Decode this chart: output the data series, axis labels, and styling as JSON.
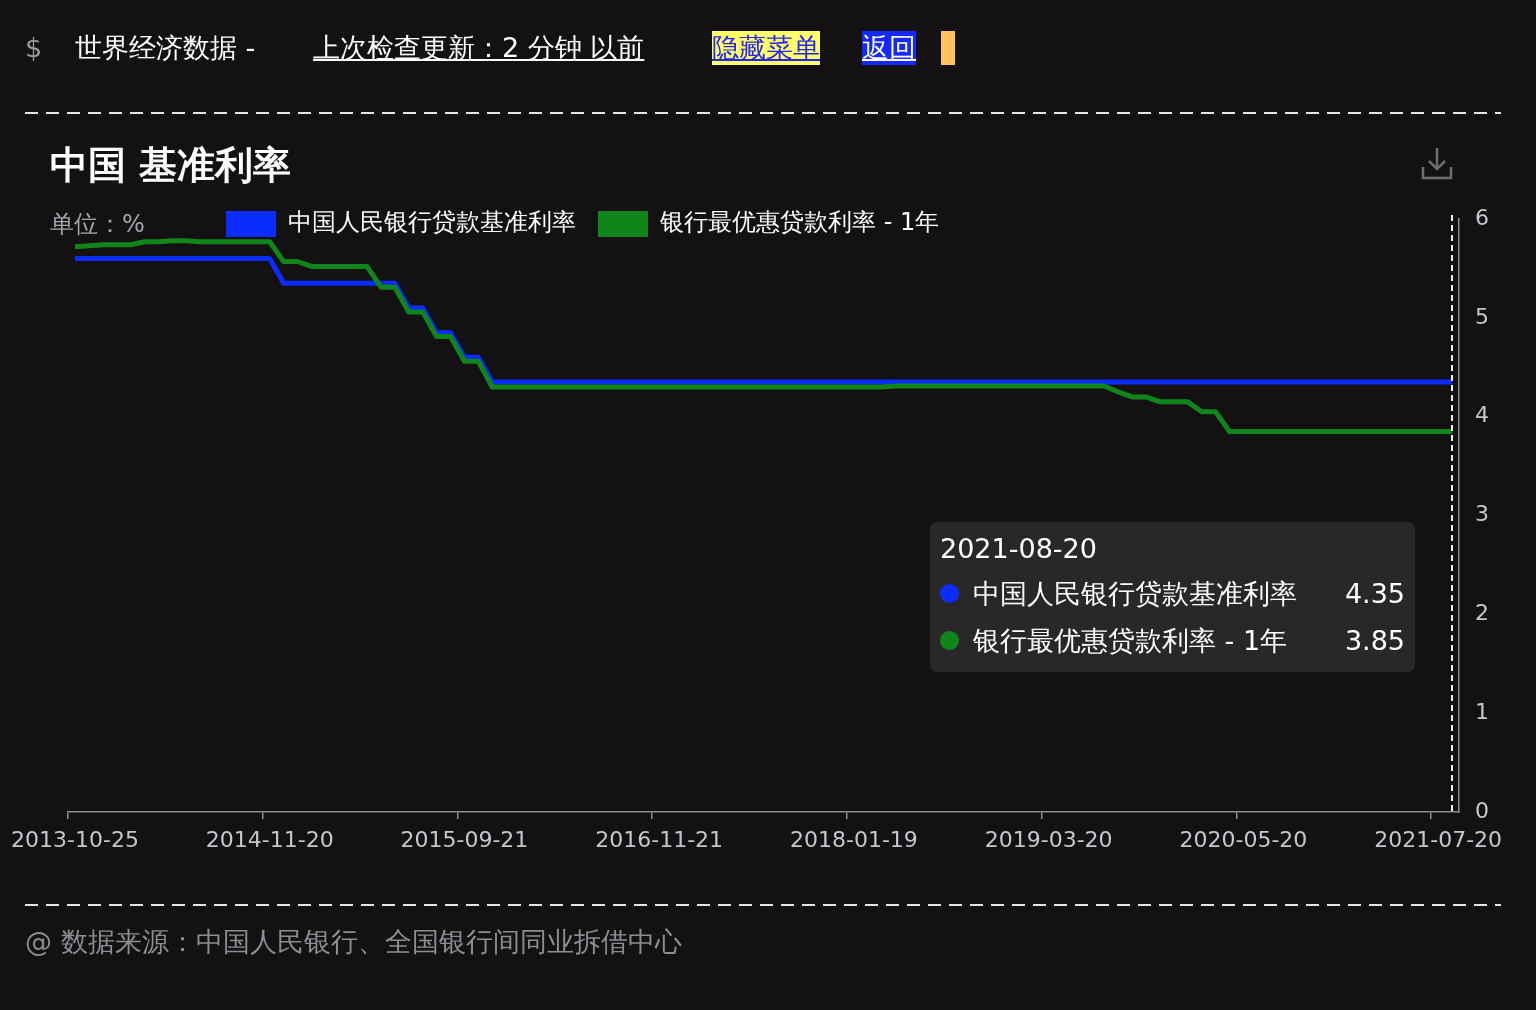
{
  "chart_data": {
    "type": "line",
    "title": "中国 基准利率",
    "ylabel": "单位：%",
    "categories": [
      "2013-10-25",
      null,
      null,
      null,
      null,
      null,
      null,
      null,
      null,
      null,
      null,
      null,
      null,
      null,
      "2014-11-20",
      null,
      null,
      null,
      null,
      null,
      null,
      null,
      null,
      null,
      null,
      null,
      null,
      null,
      "2015-09-21",
      null,
      null,
      null,
      null,
      null,
      null,
      null,
      null,
      null,
      null,
      null,
      null,
      null,
      "2016-11-21",
      null,
      null,
      null,
      null,
      null,
      null,
      null,
      null,
      null,
      null,
      null,
      null,
      null,
      "2018-01-19",
      null,
      null,
      null,
      null,
      null,
      null,
      null,
      null,
      null,
      null,
      null,
      null,
      null,
      "2019-03-20",
      null,
      null,
      null,
      null,
      null,
      null,
      null,
      null,
      null,
      null,
      null,
      null,
      null,
      "2020-05-20",
      null,
      null,
      null,
      null,
      null,
      null,
      null,
      null,
      null,
      null,
      null,
      null,
      null,
      "2021-07-20",
      null
    ],
    "series": [
      {
        "name": "中国人民银行贷款基准利率",
        "color": "#0a2cff",
        "values": [
          5.6,
          5.6,
          5.6,
          5.6,
          5.6,
          5.6,
          5.6,
          5.6,
          5.6,
          5.6,
          5.6,
          5.6,
          5.6,
          5.6,
          5.6,
          5.35,
          5.35,
          5.35,
          5.35,
          5.35,
          5.35,
          5.35,
          5.35,
          5.35,
          5.1,
          5.1,
          4.85,
          4.85,
          4.6,
          4.6,
          4.35,
          4.35,
          4.35,
          4.35,
          4.35,
          4.35,
          4.35,
          4.35,
          4.35,
          4.35,
          4.35,
          4.35,
          4.35,
          4.35,
          4.35,
          4.35,
          4.35,
          4.35,
          4.35,
          4.35,
          4.35,
          4.35,
          4.35,
          4.35,
          4.35,
          4.35,
          4.35,
          4.35,
          4.35,
          4.35,
          4.35,
          4.35,
          4.35,
          4.35,
          4.35,
          4.35,
          4.35,
          4.35,
          4.35,
          4.35,
          4.35,
          4.35,
          4.35,
          4.35,
          4.35,
          4.35,
          4.35,
          4.35,
          4.35,
          4.35,
          4.35,
          4.35,
          4.35,
          4.35,
          4.35,
          4.35,
          4.35,
          4.35,
          4.35,
          4.35,
          4.35,
          4.35,
          4.35,
          4.35,
          4.35,
          4.35,
          4.35,
          4.35,
          4.35,
          4.35
        ]
      },
      {
        "name": "银行最优惠贷款利率 - 1年",
        "color": "#10861a",
        "values": [
          5.72,
          5.73,
          5.74,
          5.74,
          5.74,
          5.77,
          5.77,
          5.78,
          5.78,
          5.77,
          5.77,
          5.77,
          5.77,
          5.77,
          5.77,
          5.57,
          5.57,
          5.52,
          5.52,
          5.52,
          5.52,
          5.52,
          5.31,
          5.31,
          5.06,
          5.06,
          4.81,
          4.81,
          4.56,
          4.56,
          4.3,
          4.3,
          4.3,
          4.3,
          4.3,
          4.3,
          4.3,
          4.3,
          4.3,
          4.3,
          4.3,
          4.3,
          4.3,
          4.3,
          4.3,
          4.3,
          4.3,
          4.3,
          4.3,
          4.3,
          4.3,
          4.3,
          4.3,
          4.3,
          4.3,
          4.3,
          4.3,
          4.3,
          4.3,
          4.31,
          4.31,
          4.31,
          4.31,
          4.31,
          4.31,
          4.31,
          4.31,
          4.31,
          4.31,
          4.31,
          4.31,
          4.31,
          4.31,
          4.31,
          4.31,
          4.25,
          4.2,
          4.2,
          4.15,
          4.15,
          4.15,
          4.05,
          4.05,
          3.85,
          3.85,
          3.85,
          3.85,
          3.85,
          3.85,
          3.85,
          3.85,
          3.85,
          3.85,
          3.85,
          3.85,
          3.85,
          3.85,
          3.85,
          3.85,
          3.85
        ]
      }
    ],
    "ylim": [
      0,
      6
    ],
    "yticks": [
      0,
      1,
      2,
      3,
      4,
      5,
      6
    ],
    "legend": "top left",
    "annotations": [
      "$",
      "世界经济数据 -",
      "上次检查更新：2 分钟 以前",
      "隐藏菜单",
      "返回",
      "2021-08-20",
      "4.35",
      "3.85",
      "@ 数据来源：中国人民银行、全国银行间同业拆借中心"
    ]
  }
}
